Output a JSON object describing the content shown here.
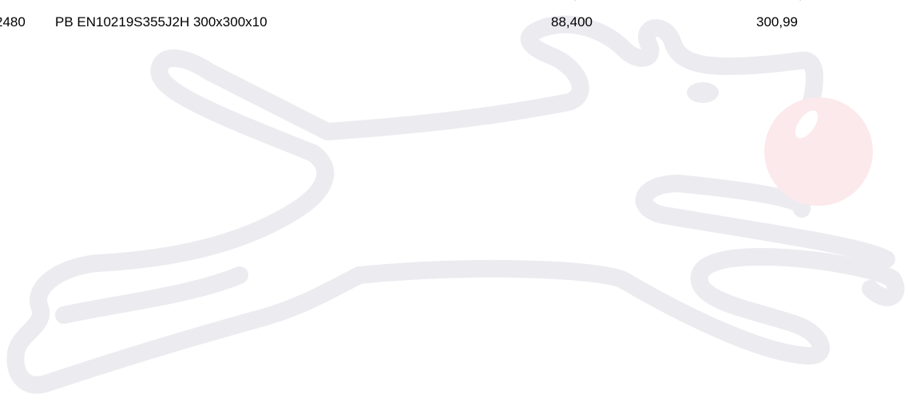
{
  "row": {
    "code": "2480",
    "description": "PB EN10219S355J2H 300x300x10",
    "quantity": "88,400",
    "price": "300,99"
  }
}
